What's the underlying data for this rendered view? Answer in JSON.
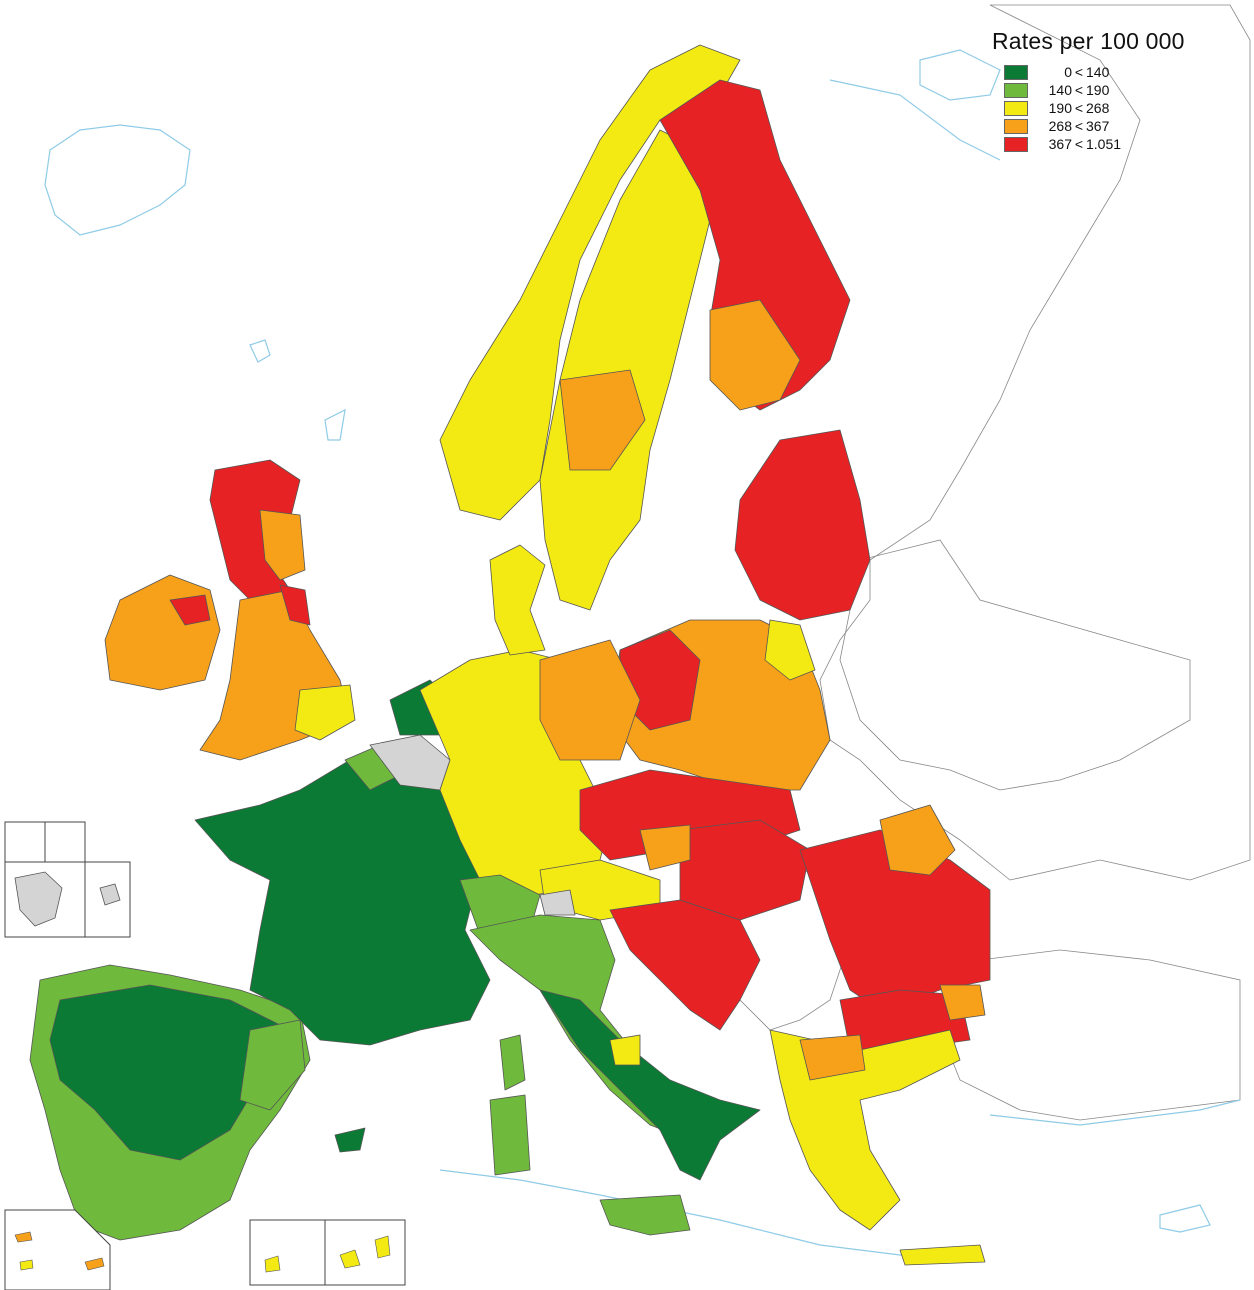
{
  "legend": {
    "title": "Rates per 100 000",
    "classes": [
      {
        "low": "0",
        "sep": "<",
        "high": "140",
        "color": "#0a7a35"
      },
      {
        "low": "140",
        "sep": "<",
        "high": "190",
        "color": "#6fba3c"
      },
      {
        "low": "190",
        "sep": "<",
        "high": "268",
        "color": "#f3ea14"
      },
      {
        "low": "268",
        "sep": "<",
        "high": "367",
        "color": "#f7a11a"
      },
      {
        "low": "367",
        "sep": "<",
        "high": "1.051",
        "color": "#e72225"
      }
    ]
  },
  "colors": {
    "no_data": "#d4d4d4",
    "outside": "#ffffff",
    "coastline": "#8fcbe6",
    "region_border": "#555555"
  }
}
